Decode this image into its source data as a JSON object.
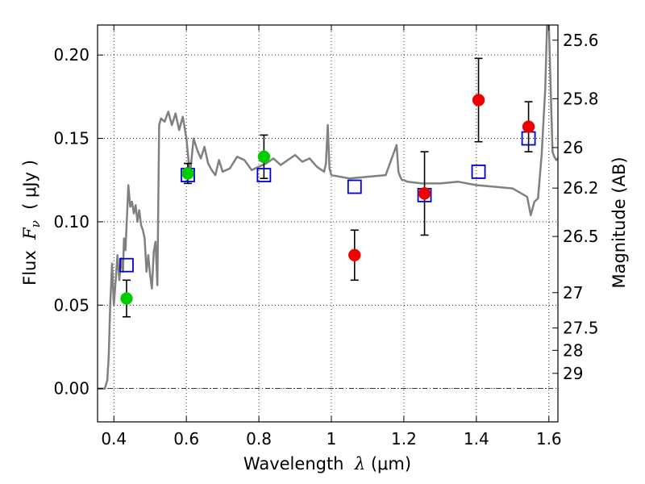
{
  "chart_data": {
    "type": "scatter",
    "xlabel": {
      "prefix": "Wavelength  ",
      "symbol": "λ",
      "unit": " (μm)"
    },
    "ylabel": {
      "prefix": "Flux  ",
      "symbol": "F",
      "subscript": "ν",
      "unit": "  ( μJy )"
    },
    "y2label": "Magnitude (AB)",
    "xlim": [
      0.355,
      1.625
    ],
    "ylim": [
      -0.02,
      0.218
    ],
    "grid": true,
    "grid_style": "dotted",
    "zero_line_style": "dash-dot",
    "x_ticks": [
      {
        "value": 0.4,
        "label": "0.4"
      },
      {
        "value": 0.6,
        "label": "0.6"
      },
      {
        "value": 0.8,
        "label": "0.8"
      },
      {
        "value": 1.0,
        "label": "1"
      },
      {
        "value": 1.2,
        "label": "1.2"
      },
      {
        "value": 1.4,
        "label": "1.4"
      },
      {
        "value": 1.6,
        "label": "1.6"
      }
    ],
    "y_ticks": [
      {
        "value": 0.0,
        "label": "0.00"
      },
      {
        "value": 0.05,
        "label": "0.05"
      },
      {
        "value": 0.1,
        "label": "0.10"
      },
      {
        "value": 0.15,
        "label": "0.15"
      },
      {
        "value": 0.2,
        "label": "0.20"
      }
    ],
    "mag_ticks": [
      {
        "label": "25.6",
        "flux": 0.2089
      },
      {
        "label": "25.8",
        "flux": 0.1738
      },
      {
        "label": "26",
        "flux": 0.1445
      },
      {
        "label": "26.2",
        "flux": 0.1202
      },
      {
        "label": "26.5",
        "flux": 0.0912
      },
      {
        "label": "27",
        "flux": 0.0575
      },
      {
        "label": "27.5",
        "flux": 0.0363
      },
      {
        "label": "28",
        "flux": 0.0229
      },
      {
        "label": "29",
        "flux": 0.0091
      }
    ],
    "series": [
      {
        "kind": "model_spectrum",
        "color": "#808080",
        "x": [
          0.355,
          0.375,
          0.382,
          0.386,
          0.39,
          0.395,
          0.4,
          0.405,
          0.41,
          0.415,
          0.42,
          0.425,
          0.428,
          0.432,
          0.436,
          0.44,
          0.445,
          0.45,
          0.455,
          0.46,
          0.465,
          0.47,
          0.475,
          0.48,
          0.485,
          0.49,
          0.495,
          0.5,
          0.505,
          0.51,
          0.515,
          0.52,
          0.525,
          0.53,
          0.54,
          0.55,
          0.56,
          0.57,
          0.58,
          0.59,
          0.6,
          0.61,
          0.62,
          0.63,
          0.64,
          0.65,
          0.66,
          0.67,
          0.68,
          0.69,
          0.7,
          0.72,
          0.74,
          0.76,
          0.78,
          0.8,
          0.82,
          0.84,
          0.86,
          0.88,
          0.9,
          0.92,
          0.94,
          0.96,
          0.98,
          0.985,
          0.99,
          0.995,
          1.0,
          1.05,
          1.1,
          1.15,
          1.17,
          1.18,
          1.185,
          1.19,
          1.195,
          1.2,
          1.21,
          1.25,
          1.3,
          1.35,
          1.4,
          1.45,
          1.5,
          1.54,
          1.55,
          1.56,
          1.57,
          1.58,
          1.59,
          1.595,
          1.6,
          1.605,
          1.61,
          1.615,
          1.62,
          1.625
        ],
        "y": [
          0.0,
          0.0,
          0.005,
          0.02,
          0.05,
          0.075,
          0.05,
          0.065,
          0.08,
          0.065,
          0.078,
          0.07,
          0.09,
          0.083,
          0.102,
          0.122,
          0.109,
          0.112,
          0.105,
          0.11,
          0.1,
          0.107,
          0.098,
          0.095,
          0.09,
          0.07,
          0.08,
          0.068,
          0.06,
          0.082,
          0.088,
          0.062,
          0.158,
          0.162,
          0.16,
          0.166,
          0.158,
          0.165,
          0.155,
          0.163,
          0.15,
          0.128,
          0.15,
          0.143,
          0.138,
          0.145,
          0.135,
          0.131,
          0.128,
          0.137,
          0.13,
          0.132,
          0.139,
          0.137,
          0.131,
          0.133,
          0.135,
          0.138,
          0.134,
          0.137,
          0.14,
          0.136,
          0.138,
          0.133,
          0.13,
          0.135,
          0.158,
          0.132,
          0.128,
          0.126,
          0.127,
          0.128,
          0.14,
          0.146,
          0.13,
          0.127,
          0.125,
          0.125,
          0.124,
          0.123,
          0.123,
          0.124,
          0.122,
          0.121,
          0.12,
          0.115,
          0.104,
          0.112,
          0.114,
          0.14,
          0.18,
          0.218,
          0.218,
          0.18,
          0.142,
          0.139,
          0.137,
          0.138
        ]
      },
      {
        "kind": "model_photometry",
        "marker": "open-square",
        "color": "#0000cc",
        "x": [
          0.435,
          0.604,
          0.814,
          1.064,
          1.257,
          1.406,
          1.544
        ],
        "y": [
          0.074,
          0.128,
          0.128,
          0.121,
          0.116,
          0.13,
          0.15
        ]
      },
      {
        "kind": "observed_detection",
        "marker": "filled-circle",
        "color": "#00cc00",
        "x": [
          0.435,
          0.604,
          0.814
        ],
        "y": [
          0.054,
          0.129,
          0.139
        ],
        "err": [
          0.011,
          0.006,
          0.013
        ]
      },
      {
        "kind": "observed_measurement",
        "marker": "filled-circle",
        "color": "#ee0000",
        "x": [
          1.064,
          1.257,
          1.406,
          1.544
        ],
        "y": [
          0.08,
          0.117,
          0.173,
          0.157
        ],
        "err": [
          0.015,
          0.025,
          0.025,
          0.015
        ]
      }
    ]
  }
}
